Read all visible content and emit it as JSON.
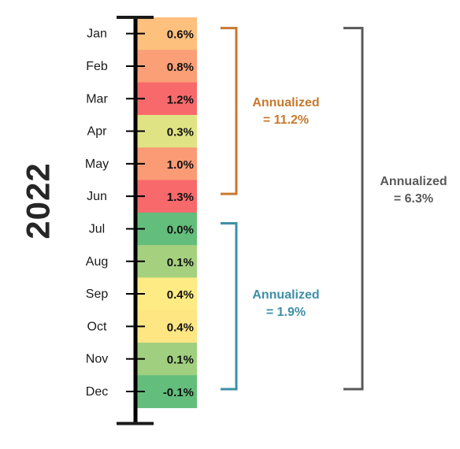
{
  "chart_data": {
    "type": "heatmap",
    "year": "2022",
    "categories": [
      "Jan",
      "Feb",
      "Mar",
      "Apr",
      "May",
      "Jun",
      "Jul",
      "Aug",
      "Sep",
      "Oct",
      "Nov",
      "Dec"
    ],
    "values": [
      0.6,
      0.8,
      1.2,
      0.3,
      1.0,
      1.3,
      0.0,
      0.1,
      0.4,
      0.4,
      0.1,
      -0.1
    ],
    "value_labels": [
      "0.6%",
      "0.8%",
      "1.2%",
      "0.3%",
      "1.0%",
      "1.3%",
      "0.0%",
      "0.1%",
      "0.4%",
      "0.4%",
      "0.1%",
      "-0.1%"
    ],
    "cell_colors": [
      "#FDC07D",
      "#FB9F76",
      "#F8696B",
      "#E0E383",
      "#FA9B75",
      "#F8696B",
      "#63BE7B",
      "#A5D17F",
      "#FFEB84",
      "#FEE683",
      "#A0D07F",
      "#63BE7B"
    ],
    "brackets": [
      {
        "line1": "Annualized",
        "line2": "= 11.2%",
        "from": "Jan",
        "to": "Jun",
        "color": "#C8782E"
      },
      {
        "line1": "Annualized",
        "line2": "= 1.9%",
        "from": "Jul",
        "to": "Dec",
        "color": "#3E8FA6"
      },
      {
        "line1": "Annualized",
        "line2": "= 6.3%",
        "from": "Jan",
        "to": "Dec",
        "color": "#595959"
      }
    ]
  }
}
